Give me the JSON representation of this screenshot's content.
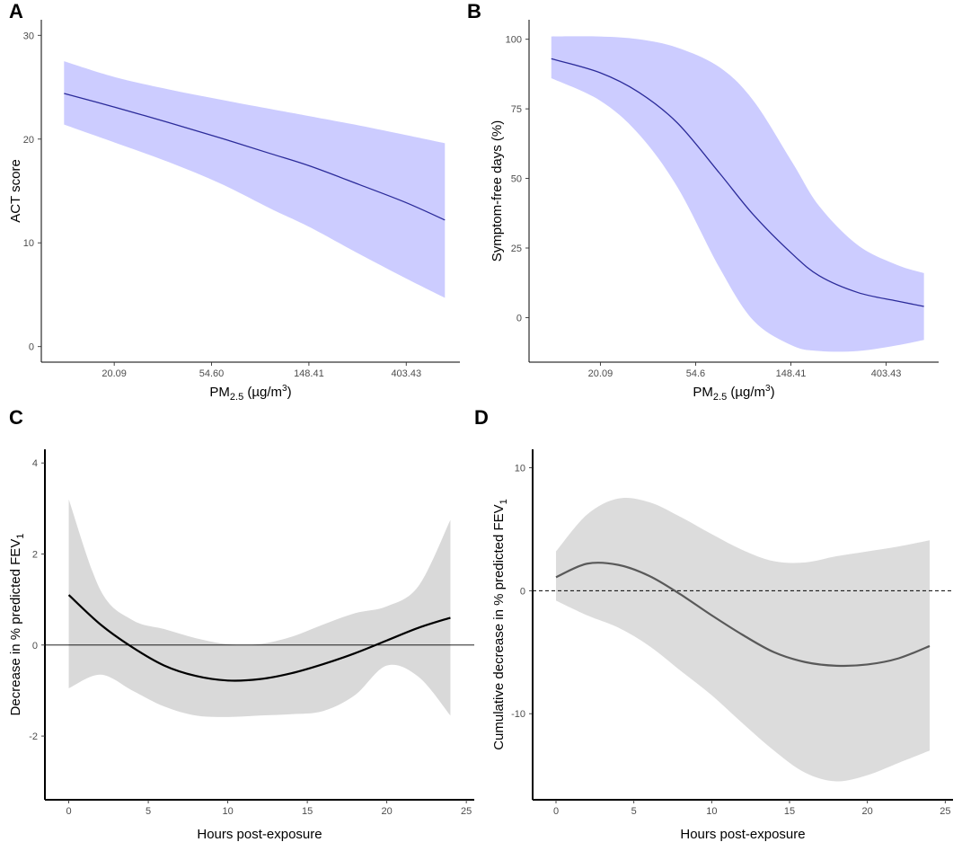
{
  "figure": {
    "panels": [
      "A",
      "B",
      "C",
      "D"
    ]
  },
  "chart_data": [
    {
      "id": "A",
      "type": "line",
      "panel_label": "A",
      "xscale": "log",
      "xlim": [
        9.5,
        700
      ],
      "ylim": [
        -1.5,
        31.5
      ],
      "xticks": [
        20.09,
        54.6,
        148.41,
        403.43
      ],
      "xtick_labels": [
        "20.09",
        "54.60",
        "148.41",
        "403.43"
      ],
      "yticks": [
        0,
        10,
        20,
        30
      ],
      "ytick_labels": [
        "0",
        "10",
        "20",
        "30"
      ],
      "xlabel": {
        "base": "PM",
        "sub": "2.5",
        "rest": " (µg/m",
        "sup": "3",
        "end": ")"
      },
      "ylabel": "ACT score",
      "line_color": "#2b2b9a",
      "band_color": "#ccccff",
      "x": [
        12,
        20,
        35,
        60,
        100,
        150,
        250,
        400,
        600
      ],
      "y": [
        24.4,
        23.1,
        21.6,
        20.1,
        18.6,
        17.4,
        15.6,
        13.9,
        12.2
      ],
      "lower": [
        21.4,
        19.7,
        17.8,
        15.7,
        13.3,
        11.5,
        8.9,
        6.6,
        4.7
      ],
      "upper": [
        27.5,
        26.0,
        24.8,
        23.8,
        22.9,
        22.2,
        21.3,
        20.4,
        19.6
      ]
    },
    {
      "id": "B",
      "type": "line",
      "panel_label": "B",
      "xscale": "log",
      "xlim": [
        9.5,
        700
      ],
      "ylim": [
        -16,
        107
      ],
      "xticks": [
        20.09,
        54.6,
        148.41,
        403.43
      ],
      "xtick_labels": [
        "20.09",
        "54.6",
        "148.41",
        "403.43"
      ],
      "yticks": [
        0,
        25,
        50,
        75,
        100
      ],
      "ytick_labels": [
        "0",
        "25",
        "50",
        "75",
        "100"
      ],
      "xlabel": {
        "base": "PM",
        "sub": "2.5",
        "rest": " (µg/m",
        "sup": "3",
        "end": ")"
      },
      "ylabel": "Symptom-free days (%)",
      "line_color": "#2b2b9a",
      "band_color": "#ccccff",
      "x": [
        12,
        20,
        30,
        45,
        70,
        100,
        150,
        200,
        300,
        450,
        600
      ],
      "y": [
        93,
        88,
        81,
        70,
        52,
        37,
        23,
        15,
        9,
        6,
        4
      ],
      "lower": [
        86,
        78,
        66,
        47,
        18,
        -1,
        -10,
        -12,
        -12,
        -10,
        -8
      ],
      "upper": [
        101,
        101,
        100,
        97,
        90,
        78,
        56,
        40,
        26,
        19,
        16
      ]
    },
    {
      "id": "C",
      "type": "line",
      "panel_label": "C",
      "xscale": "linear",
      "xlim": [
        -1.5,
        25.5
      ],
      "ylim": [
        -3.4,
        4.3
      ],
      "xticks": [
        0,
        5,
        10,
        15,
        20,
        25
      ],
      "xtick_labels": [
        "0",
        "5",
        "10",
        "15",
        "20",
        "25"
      ],
      "yticks": [
        -2,
        0,
        2,
        4
      ],
      "ytick_labels": [
        "-2",
        "0",
        "2",
        "4"
      ],
      "xlabel": "Hours post-exposure",
      "ylabel": {
        "base": "Decrease in % predicted FEV",
        "sub": "1"
      },
      "reference_line": {
        "y": 0,
        "style": "solid"
      },
      "line_color": "#000000",
      "band_color": "#d9d9d9",
      "x": [
        0,
        2,
        4,
        6,
        8,
        10,
        12,
        14,
        16,
        18,
        20,
        22,
        24
      ],
      "y": [
        1.1,
        0.45,
        -0.05,
        -0.45,
        -0.68,
        -0.78,
        -0.75,
        -0.62,
        -0.42,
        -0.18,
        0.1,
        0.38,
        0.6
      ],
      "lower": [
        -0.95,
        -0.65,
        -1.0,
        -1.35,
        -1.55,
        -1.58,
        -1.55,
        -1.52,
        -1.45,
        -1.1,
        -0.45,
        -0.7,
        -1.55
      ],
      "upper": [
        3.2,
        1.2,
        0.55,
        0.35,
        0.15,
        0.02,
        0.02,
        0.18,
        0.45,
        0.7,
        0.85,
        1.3,
        2.75
      ]
    },
    {
      "id": "D",
      "type": "line",
      "panel_label": "D",
      "xscale": "linear",
      "xlim": [
        -1.5,
        25.5
      ],
      "ylim": [
        -17,
        11.5
      ],
      "xticks": [
        0,
        5,
        10,
        15,
        20,
        25
      ],
      "xtick_labels": [
        "0",
        "5",
        "10",
        "15",
        "20",
        "25"
      ],
      "yticks": [
        -10,
        0,
        10
      ],
      "ytick_labels": [
        "-10",
        "0",
        "10"
      ],
      "xlabel": "Hours post-exposure",
      "ylabel": {
        "base": "Cumulative decrease in % predicted FEV",
        "sub": "1"
      },
      "reference_line": {
        "y": 0,
        "style": "dashed"
      },
      "line_color": "#595959",
      "band_color": "#dcdcdc",
      "x": [
        0,
        2,
        4,
        6,
        8,
        10,
        12,
        14,
        16,
        18,
        20,
        22,
        24
      ],
      "y": [
        1.1,
        2.2,
        2.1,
        1.2,
        -0.3,
        -2.0,
        -3.6,
        -5.0,
        -5.8,
        -6.1,
        -6.0,
        -5.5,
        -4.5
      ],
      "lower": [
        -0.8,
        -2.0,
        -3.0,
        -4.5,
        -6.5,
        -8.5,
        -10.8,
        -13.0,
        -14.8,
        -15.5,
        -15.0,
        -14.0,
        -13.0
      ],
      "upper": [
        3.2,
        6.2,
        7.5,
        7.2,
        6.0,
        4.6,
        3.3,
        2.4,
        2.3,
        2.8,
        3.2,
        3.6,
        4.1
      ]
    }
  ]
}
